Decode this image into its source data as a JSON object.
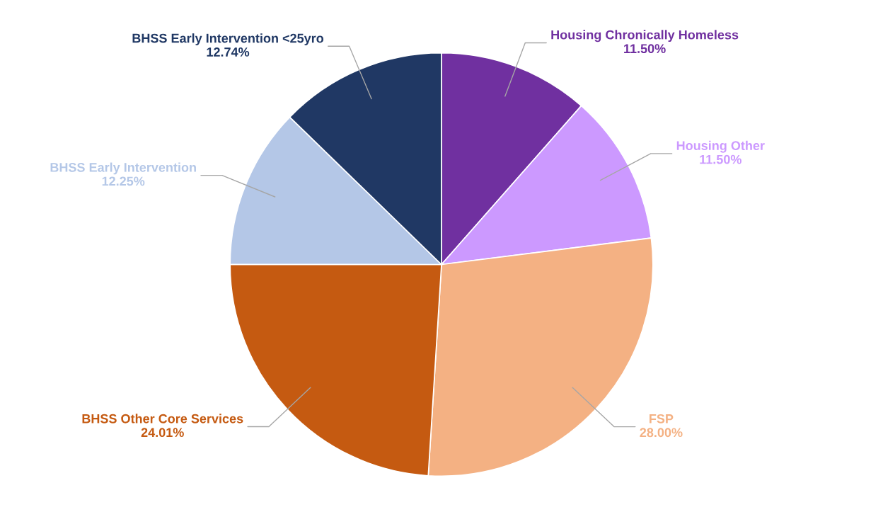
{
  "chart_data": {
    "type": "pie",
    "categories": [
      "Housing Chronically Homeless",
      "Housing Other",
      "FSP",
      "BHSS Other Core Services",
      "BHSS Early Intervention",
      "BHSS Early Intervention <25yro"
    ],
    "values": [
      11.5,
      11.5,
      28.0,
      24.01,
      12.25,
      12.74
    ],
    "colors": [
      "#7030a0",
      "#cc99ff",
      "#f4b183",
      "#c55a11",
      "#b4c7e7",
      "#203864"
    ],
    "value_labels": [
      "11.50%",
      "11.50%",
      "28.00%",
      "24.01%",
      "12.25%",
      "12.74%"
    ],
    "legend": false
  }
}
